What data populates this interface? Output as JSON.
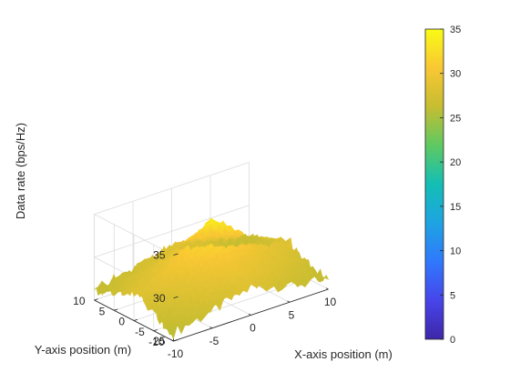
{
  "chart_data": {
    "type": "surface",
    "title": "",
    "xlabel": "X-axis position (m)",
    "ylabel": "Y-axis position (m)",
    "zlabel": "Data rate (bps/Hz)",
    "xlim": [
      -10,
      10
    ],
    "ylim": [
      -10,
      10
    ],
    "zlim": [
      25,
      35
    ],
    "xticks": [
      "-10",
      "-5",
      "0",
      "5",
      "10"
    ],
    "yticks": [
      "-10",
      "-5",
      "0",
      "5",
      "10"
    ],
    "zticks": [
      "25",
      "30",
      "35"
    ],
    "grid": true,
    "colormap": "parula",
    "colorbar": {
      "range": [
        0,
        35
      ],
      "ticks": [
        "0",
        "5",
        "10",
        "15",
        "20",
        "25",
        "30",
        "35"
      ]
    },
    "surface_grid": {
      "x": [
        -10,
        -5,
        0,
        5,
        10
      ],
      "y": [
        -10,
        -5,
        0,
        5,
        10
      ],
      "z": [
        [
          26.0,
          27.0,
          28.2,
          27.0,
          26.0
        ],
        [
          27.0,
          28.6,
          30.0,
          28.6,
          27.0
        ],
        [
          28.2,
          30.0,
          33.8,
          30.0,
          28.2
        ],
        [
          27.0,
          28.6,
          30.0,
          28.6,
          27.0
        ],
        [
          26.0,
          27.0,
          28.2,
          27.0,
          26.0
        ]
      ]
    },
    "peak": {
      "x": 0,
      "y": 0,
      "z": 33.8
    }
  }
}
